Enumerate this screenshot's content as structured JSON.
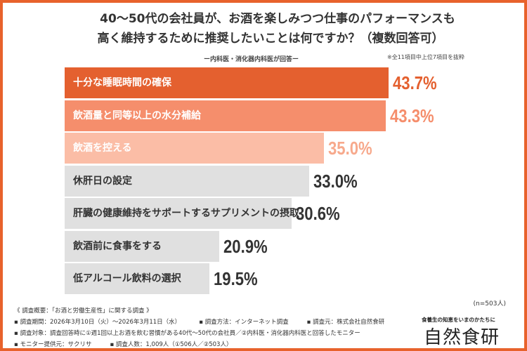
{
  "title_line1": "40〜50代の会社員が、お酒を楽しみつつ仕事のパフォーマンスも",
  "title_line2": "高く維持するために推奨したいことは何ですか？（複数回答可）",
  "subtitle": "ー内科医・消化器内科医が回答ー",
  "note": "※全11項目中上位7項目を抜粋",
  "chart_data": {
    "type": "bar",
    "orientation": "horizontal",
    "unit": "%",
    "categories": [
      "十分な睡眠時間の確保",
      "飲酒量と同等以上の水分補給",
      "飲酒を控える",
      "休肝日の設定",
      "肝臓の健康維持をサポートするサプリメントの摂取",
      "飲酒前に食事をする",
      "低アルコール飲料の選択"
    ],
    "values": [
      43.7,
      43.3,
      35.0,
      33.0,
      30.6,
      20.9,
      19.5
    ],
    "value_labels": [
      "43.7%",
      "43.3%",
      "35.0%",
      "33.0%",
      "30.6%",
      "20.9%",
      "19.5%"
    ],
    "bar_colors": [
      "#e4602f",
      "#f58e6c",
      "#fbbda6",
      "#e0e0e0",
      "#e0e0e0",
      "#e0e0e0",
      "#e0e0e0"
    ],
    "label_colors": [
      "#ffffff",
      "#ffffff",
      "#ffffff",
      "#333333",
      "#333333",
      "#333333",
      "#333333"
    ],
    "value_colors": [
      "#e4602f",
      "#f58e6c",
      "#f7a98c",
      "#333333",
      "#333333",
      "#333333",
      "#333333"
    ]
  },
  "sample": "(n=503人)",
  "footer": {
    "heading": "《 調査概要：「お酒と労働生産性」に関する調査 》",
    "period": "▪ 調査期間：2026年3月10日（火）〜2026年3月11日（水）",
    "method": "▪ 調査方法：インターネット調査",
    "source": "▪ 調査元：株式会社自然食研",
    "target": "▪ 調査対象：調査回答時に①週1回以上お酒を飲む習慣がある40代〜50代の会社員／②内科医・消化器内科医と回答したモニター",
    "provider": "▪ モニター提供元：サクリサ",
    "count": "▪ 調査人数：1,009人（①506人／②503人）"
  },
  "brand": {
    "tagline": "食養生の知恵をいまのかたちに",
    "name": "自然食研",
    "accent": "#e8622c"
  }
}
